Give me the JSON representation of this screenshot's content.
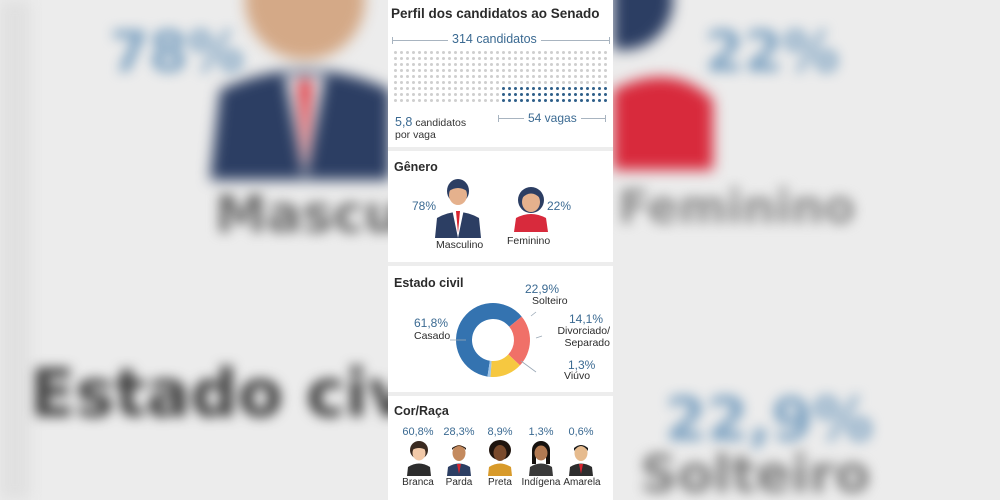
{
  "title": "Perfil dos candidatos ao Senado",
  "total": {
    "label": "314 candidatos",
    "value": 314
  },
  "ratio": {
    "number": "5,8",
    "text_line1": "candidatos",
    "text_line2": "por vaga"
  },
  "vagas": {
    "label": "54 vagas",
    "value": 54
  },
  "colors": {
    "accent": "#3b6a92",
    "dot_filled": "#2f5f8a",
    "dot_empty": "#cfcfcf",
    "casado": "#3473b0",
    "solteiro": "#f07068",
    "divorciado": "#f6c840",
    "viuvo": "#9fc5e8"
  },
  "chart_data": [
    {
      "type": "bar",
      "title": "Gênero",
      "categories": [
        "Masculino",
        "Feminino"
      ],
      "values": [
        78,
        22
      ],
      "labels": [
        "78%",
        "22%"
      ],
      "icons": [
        "man-icon",
        "woman-icon"
      ]
    },
    {
      "type": "pie",
      "title": "Estado civil",
      "categories": [
        "Casado",
        "Solteiro",
        "Divorciado/ Separado",
        "Viúvo"
      ],
      "values": [
        61.8,
        22.9,
        14.1,
        1.3
      ],
      "labels": [
        "61,8%",
        "22,9%",
        "14,1%",
        "1,3%"
      ]
    },
    {
      "type": "bar",
      "title": "Cor/Raça",
      "categories": [
        "Branca",
        "Parda",
        "Preta",
        "Indígena",
        "Amarela"
      ],
      "values": [
        60.8,
        28.3,
        8.9,
        1.3,
        0.6
      ],
      "labels": [
        "60,8%",
        "28,3%",
        "8,9%",
        "1,3%",
        "0,6%"
      ],
      "icons": [
        "white-person-icon",
        "brown-person-icon",
        "black-person-icon",
        "indigenous-person-icon",
        "asian-person-icon"
      ]
    }
  ]
}
